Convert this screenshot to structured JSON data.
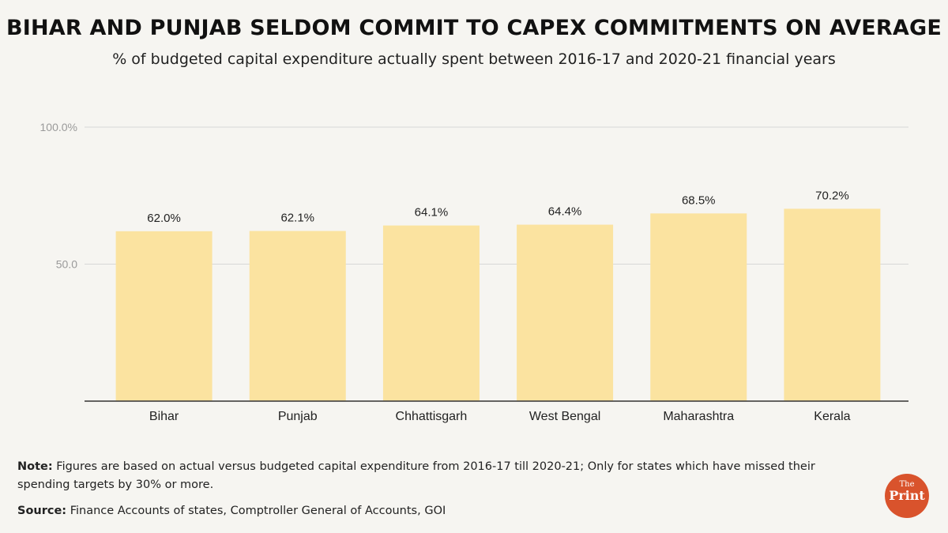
{
  "header": {
    "title": "BIHAR AND PUNJAB SELDOM COMMIT TO CAPEX COMMITMENTS ON AVERAGE",
    "subtitle": "% of budgeted capital expenditure actually spent between 2016-17 and 2020-21 financial years"
  },
  "chart_data": {
    "type": "bar",
    "categories": [
      "Bihar",
      "Punjab",
      "Chhattisgarh",
      "West Bengal",
      "Maharashtra",
      "Kerala"
    ],
    "values": [
      62.0,
      62.1,
      64.1,
      64.4,
      68.5,
      70.2
    ],
    "data_labels": [
      "62.0%",
      "62.1%",
      "64.1%",
      "64.4%",
      "68.5%",
      "70.2%"
    ],
    "ylim": [
      0,
      100
    ],
    "yticks": [
      50,
      100
    ],
    "ytick_labels": [
      "50.0",
      "100.0%"
    ],
    "grid": true,
    "bar_color": "#fbe3a0"
  },
  "footer": {
    "note_label": "Note:",
    "note_text": " Figures are based on actual versus budgeted capital expenditure from 2016-17 till 2020-21; Only for states which have missed their spending targets by 30% or more.",
    "source_label": "Source:",
    "source_text": " Finance Accounts of states, Comptroller General of Accounts, GOI"
  },
  "logo": {
    "the": "The",
    "print": "Print",
    "color": "#d9532c"
  }
}
